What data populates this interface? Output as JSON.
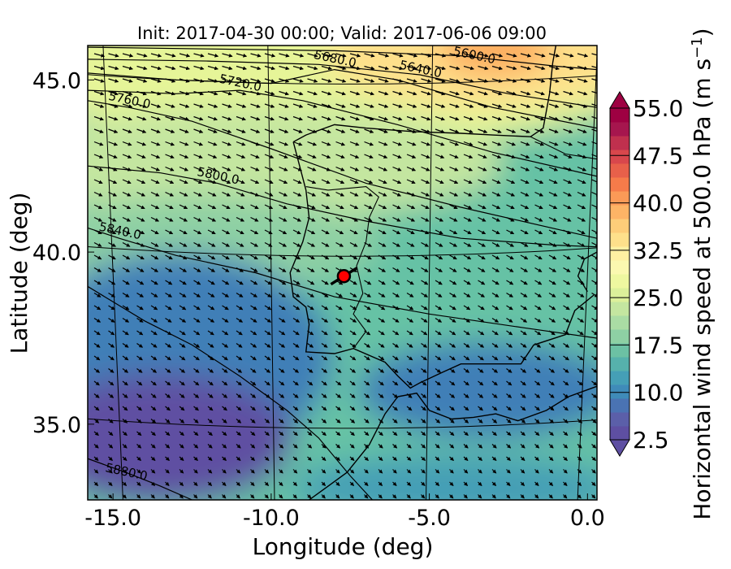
{
  "title": "Init: 2017-04-30 00:00; Valid: 2017-06-06 09:00",
  "colors": {
    "frame": "#000000",
    "marker_fill": "#ff0000",
    "marker_edge": "#000000",
    "ocean_deep": "#5e4fa2",
    "ocean_mid": "#3f7fb7",
    "land_mid": "#66c2a5",
    "north_light": "#e6f598",
    "north_warm": "#fee08b",
    "jet_core": "#fdae61"
  },
  "map": {
    "type": "contour_map",
    "variable": "Horizontal wind speed at 500.0 hPa",
    "contour_variable": "geopotential height",
    "xlabel": "Longitude (deg)",
    "ylabel": "Latitude (deg)",
    "xlim": [
      -15.8,
      0.3
    ],
    "ylim": [
      32.8,
      46.0
    ],
    "xticks": [
      {
        "value": -15,
        "label": "-15.0"
      },
      {
        "value": -10,
        "label": "-10.0"
      },
      {
        "value": -5,
        "label": "-5.0"
      },
      {
        "value": 0,
        "label": "0.0"
      }
    ],
    "yticks": [
      {
        "value": 35,
        "label": "35.0"
      },
      {
        "value": 40,
        "label": "40.0"
      },
      {
        "value": 45,
        "label": "45.0"
      }
    ],
    "contour_labels": [
      {
        "label": "5600.0",
        "lon": -3.6,
        "lat": 45.6
      },
      {
        "label": "5640.0",
        "lon": -5.3,
        "lat": 45.2
      },
      {
        "label": "5680.0",
        "lon": -8.0,
        "lat": 45.5
      },
      {
        "label": "5720.0",
        "lon": -11.0,
        "lat": 44.8
      },
      {
        "label": "5760.0",
        "lon": -14.5,
        "lat": 44.3
      },
      {
        "label": "5800.0",
        "lon": -11.7,
        "lat": 42.1
      },
      {
        "label": "5840.0",
        "lon": -14.8,
        "lat": 40.5
      },
      {
        "label": "5880.0",
        "lon": -14.6,
        "lat": 33.5
      }
    ],
    "marker": {
      "lon": -7.7,
      "lat": 39.3
    }
  },
  "colorbar": {
    "label": "Horizontal wind speed at 500.0 hPa (m s",
    "label_exponent": "−1",
    "label_close": ")",
    "min": 2.5,
    "max": 55.0,
    "step": 2.5,
    "extend": "both",
    "tick_labels": [
      "2.5",
      "10.0",
      "17.5",
      "25.0",
      "32.5",
      "40.0",
      "47.5",
      "55.0"
    ],
    "colors": [
      "#5e4fa2",
      "#5b5fa9",
      "#4a73b3",
      "#3f8bb9",
      "#459fb6",
      "#56b1ac",
      "#6cc1a4",
      "#8ed0a4",
      "#aadca4",
      "#c4e6a0",
      "#dcf09a",
      "#eef7a0",
      "#fbf8b0",
      "#fef0a2",
      "#fee08b",
      "#fdcd79",
      "#fdb466",
      "#fb9a57",
      "#f67b4a",
      "#e8604a",
      "#d8474c",
      "#c0304e",
      "#a6164e",
      "#9e0142"
    ],
    "under_color": "#5e4fa2",
    "over_color": "#9e0142"
  }
}
